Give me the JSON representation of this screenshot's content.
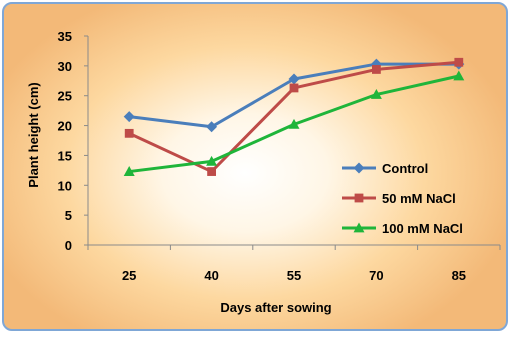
{
  "chart_data": {
    "type": "line",
    "title": "",
    "xlabel": "Days after sowing",
    "ylabel": "Plant height (cm)",
    "categories": [
      "25",
      "40",
      "55",
      "70",
      "85"
    ],
    "ylim": [
      0,
      35
    ],
    "yticks": [
      0,
      5,
      10,
      15,
      20,
      25,
      30,
      35
    ],
    "grid": false,
    "legend_position": "right",
    "series": [
      {
        "name": "Control",
        "color": "#4a7ebb",
        "marker": "diamond",
        "values": [
          21.5,
          19.8,
          27.8,
          30.3,
          30.3
        ]
      },
      {
        "name": "50 mM NaCl",
        "color": "#be4b48",
        "marker": "square",
        "values": [
          18.7,
          12.3,
          26.3,
          29.4,
          30.6
        ]
      },
      {
        "name": "100 mM NaCl",
        "color": "#1fb53a",
        "marker": "triangle",
        "values": [
          12.3,
          14.0,
          20.2,
          25.2,
          28.3
        ]
      }
    ]
  }
}
